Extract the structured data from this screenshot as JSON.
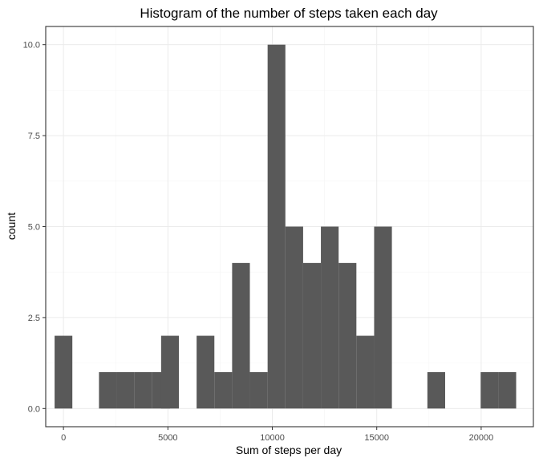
{
  "chart_data": {
    "type": "bar",
    "title": "Histogram of the number of steps taken each day",
    "xlabel": "Sum of steps per day",
    "ylabel": "count",
    "xlim": [
      -850,
      22500
    ],
    "ylim": [
      -0.5,
      10.5
    ],
    "x_ticks": [
      0,
      5000,
      10000,
      15000,
      20000
    ],
    "x_tick_labels": [
      "0",
      "5000",
      "10000",
      "15000",
      "20000"
    ],
    "y_ticks": [
      0,
      2.5,
      5,
      7.5,
      10
    ],
    "y_tick_labels": [
      "0.0",
      "2.5",
      "5.0",
      "7.5",
      "10.0"
    ],
    "bin_width": 850,
    "bin_centers": [
      0,
      2125,
      2975,
      3825,
      4675,
      5100,
      6800,
      7650,
      8500,
      9350,
      10200,
      11050,
      11900,
      12750,
      13600,
      14450,
      15300,
      17850,
      20400,
      21250
    ],
    "values": [
      2,
      1,
      1,
      1,
      1,
      2,
      2,
      1,
      4,
      1,
      10,
      5,
      4,
      5,
      4,
      2,
      5,
      1,
      1,
      1
    ],
    "grid": true,
    "legend": "none",
    "bar_color": "#595959"
  }
}
